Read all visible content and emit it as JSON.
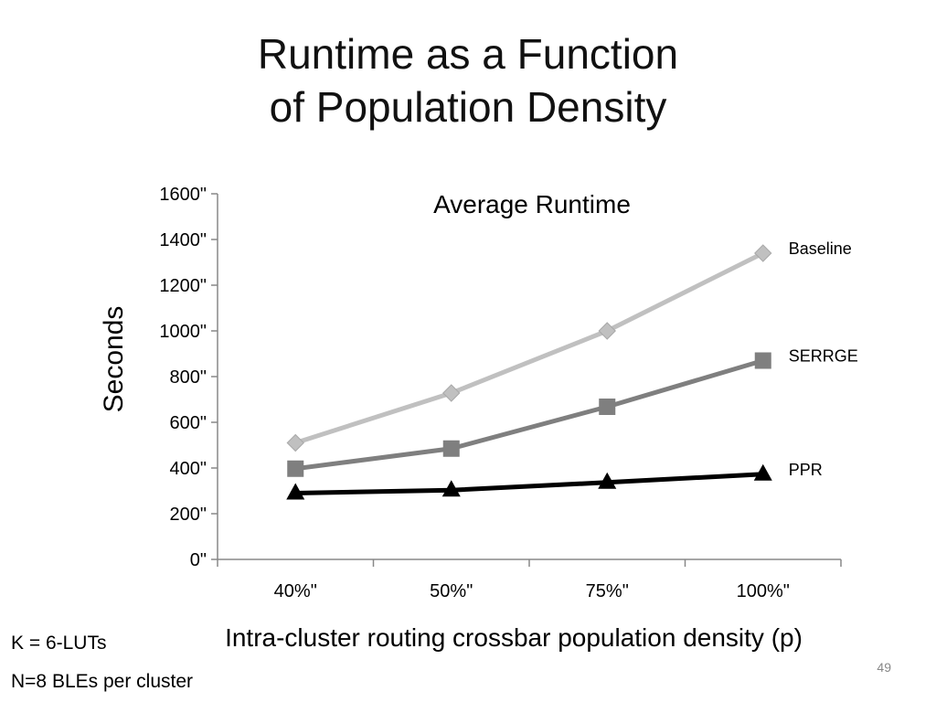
{
  "slide": {
    "title_line1": "Runtime as a Function",
    "title_line2": "of Population Density",
    "notes": [
      "K = 6-LUTs",
      "N=8 BLEs per cluster"
    ],
    "page_number": "49"
  },
  "chart_data": {
    "type": "line",
    "title": "Average Runtime",
    "xlabel": "Intra-cluster routing crossbar population density (p)",
    "ylabel": "Seconds",
    "categories": [
      "40%\"",
      "50%\"",
      "75%\"",
      "100%\""
    ],
    "yticks": [
      "0\"",
      "200\"",
      "400\"",
      "600\"",
      "800\"",
      "1000\"",
      "1200\"",
      "1400\"",
      "1600\""
    ],
    "ylim": [
      0,
      1600
    ],
    "grid": false,
    "legend": "labels at line ends",
    "series": [
      {
        "name": "Baseline",
        "values": [
          510,
          728,
          1000,
          1340
        ],
        "color": "#c0c0c0",
        "marker": "diamond"
      },
      {
        "name": "SERRGE",
        "values": [
          397,
          485,
          668,
          870
        ],
        "color": "#7f7f7f",
        "marker": "square"
      },
      {
        "name": "PPR",
        "values": [
          290,
          303,
          337,
          373
        ],
        "color": "#000000",
        "marker": "triangle"
      }
    ]
  }
}
